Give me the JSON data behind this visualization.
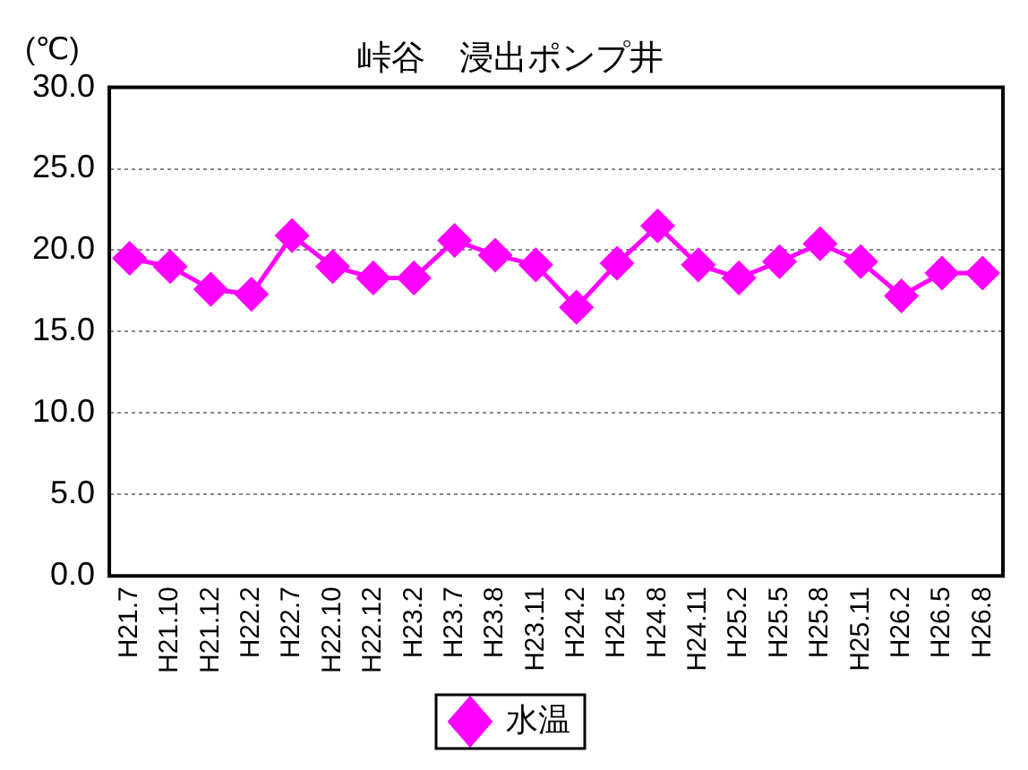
{
  "chart_data": {
    "type": "line",
    "title": "峠谷　浸出ポンプ井",
    "ylabel": "(℃)",
    "categories": [
      "H21.7",
      "H21.10",
      "H21.12",
      "H22.2",
      "H22.7",
      "H22.10",
      "H22.12",
      "H23.2",
      "H23.7",
      "H23.8",
      "H23.11",
      "H24.2",
      "H24.5",
      "H24.8",
      "H24.11",
      "H25.2",
      "H25.5",
      "H25.8",
      "H25.11",
      "H26.2",
      "H26.5",
      "H26.8"
    ],
    "series": [
      {
        "name": "水温",
        "color": "#ff00ff",
        "values": [
          19.5,
          19.0,
          17.6,
          17.3,
          20.9,
          19.0,
          18.3,
          18.3,
          20.6,
          19.7,
          19.1,
          16.5,
          19.2,
          21.5,
          19.1,
          18.3,
          19.3,
          20.4,
          19.3,
          17.2,
          18.6,
          18.6
        ]
      }
    ],
    "ylim": [
      0,
      30
    ],
    "yticks": [
      {
        "value": 0,
        "label": "0.0"
      },
      {
        "value": 5,
        "label": "5.0"
      },
      {
        "value": 10,
        "label": "10.0"
      },
      {
        "value": 15,
        "label": "15.0"
      },
      {
        "value": 20,
        "label": "20.0"
      },
      {
        "value": 25,
        "label": "25.0"
      },
      {
        "value": 30,
        "label": "30.0"
      }
    ],
    "grid": "y",
    "legend": "bottom",
    "marker": "diamond",
    "line_style": "solid"
  }
}
